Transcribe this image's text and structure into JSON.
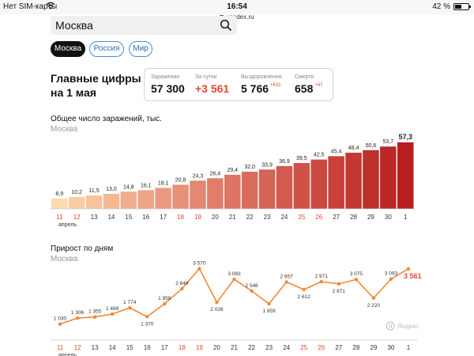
{
  "status_bar": {
    "carrier": "Нет SIM-карты",
    "time": "16:54",
    "battery": "42 %",
    "battery_level": 0.42
  },
  "url": "yandex.ru",
  "search": {
    "value": "Москва"
  },
  "regions": [
    {
      "label": "Москва",
      "active": true
    },
    {
      "label": "Россия",
      "active": false
    },
    {
      "label": "Мир",
      "active": false
    }
  ],
  "headline": {
    "line1": "Главные цифры",
    "line2": "на 1 мая"
  },
  "stats": [
    {
      "label": "Заражения",
      "value": "57 300",
      "delta": "",
      "accent": false
    },
    {
      "label": "За сутки",
      "value": "+3 561",
      "delta": "",
      "accent": true
    },
    {
      "label": "Выздоровления",
      "value": "5 766",
      "delta": "+631",
      "accent": false
    },
    {
      "label": "Смерти",
      "value": "658",
      "delta": "+47",
      "accent": false
    }
  ],
  "total_chart": {
    "title": "Общее число заражений, тыс.",
    "subtitle": "Москва"
  },
  "daily_chart": {
    "title": "Прирост по дням",
    "subtitle": "Москва",
    "watermark": "Яндекс"
  },
  "colors": {
    "accent": "#e8452c",
    "line": "#f08a33",
    "weekend": "#e8452c"
  },
  "chart_data": [
    {
      "type": "bar",
      "title": "Общее число заражений, тыс.",
      "subtitle": "Москва",
      "categories": [
        "11",
        "12",
        "13",
        "14",
        "15",
        "16",
        "17",
        "18",
        "19",
        "20",
        "21",
        "22",
        "23",
        "24",
        "25",
        "26",
        "27",
        "28",
        "29",
        "30",
        "1"
      ],
      "category_sub": "апрель",
      "weekend_categories": [
        "11",
        "12",
        "18",
        "19",
        "25",
        "26"
      ],
      "values": [
        8.9,
        10.2,
        11.5,
        13.0,
        14.8,
        16.1,
        18.1,
        20.8,
        24.3,
        26.4,
        29.4,
        32.0,
        33.9,
        36.9,
        39.5,
        42.5,
        45.4,
        48.4,
        50.6,
        53.7,
        57.3
      ],
      "labels": [
        "8,9",
        "10,2",
        "11,5",
        "13,0",
        "14,8",
        "16,1",
        "18,1",
        "20,8",
        "24,3",
        "26,4",
        "29,4",
        "32,0",
        "33,9",
        "36,9",
        "39,5",
        "42,5",
        "45,4",
        "48,4",
        "50,6",
        "53,7",
        "57,3"
      ],
      "ylim": [
        0,
        60
      ]
    },
    {
      "type": "line",
      "title": "Прирост по дням",
      "subtitle": "Москва",
      "categories": [
        "11",
        "12",
        "13",
        "14",
        "15",
        "16",
        "17",
        "18",
        "19",
        "20",
        "21",
        "22",
        "23",
        "24",
        "25",
        "26",
        "27",
        "28",
        "29",
        "30",
        "1"
      ],
      "category_sub": "апрель",
      "weekend_categories": [
        "11",
        "12",
        "18",
        "19",
        "25",
        "26"
      ],
      "values": [
        1030,
        1306,
        1355,
        1489,
        1774,
        1370,
        1959,
        2649,
        3570,
        2026,
        3083,
        2548,
        1959,
        2957,
        2612,
        2971,
        2871,
        3075,
        2220,
        3093,
        3561
      ],
      "labels": [
        "1 030",
        "1 306",
        "1 355",
        "1 489",
        "1 774",
        "1 370",
        "1 959",
        "2 649",
        "3 570",
        "2 026",
        "3 083",
        "2 548",
        "1 959",
        "2 957",
        "2 612",
        "2 971",
        "2 871",
        "3 075",
        "2 220",
        "3 093",
        "3 561"
      ],
      "ylim": [
        0,
        4000
      ]
    }
  ]
}
